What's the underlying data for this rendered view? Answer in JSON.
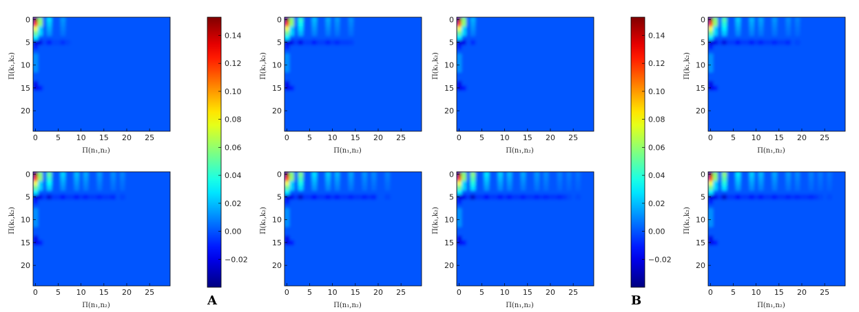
{
  "panel_letters": [
    "A",
    "B"
  ],
  "chart_data": {
    "type": "heatmap",
    "xlabel": "Π(n₁,n₂)",
    "ylabel": "Π(k₁,k₂)",
    "x_ticks": [
      0,
      5,
      10,
      15,
      20,
      25
    ],
    "y_ticks": [
      0,
      5,
      10,
      15,
      20
    ],
    "xlim": [
      0,
      29
    ],
    "ylim": [
      24,
      0
    ],
    "colormap": "jet",
    "colorbar_ticks": [
      -0.02,
      0.0,
      0.02,
      0.04,
      0.06,
      0.08,
      0.1,
      0.12,
      0.14
    ],
    "colorbar_tick_labels": [
      "−0.02",
      "0.00",
      "0.02",
      "0.04",
      "0.06",
      "0.08",
      "0.10",
      "0.12",
      "0.14"
    ],
    "vmin": -0.04,
    "vmax": 0.153,
    "groups": [
      {
        "letter": "A",
        "panels": [
          {
            "position": "top-left",
            "stripe_count": 2,
            "stripe_strength": 0.45
          },
          {
            "position": "top-right",
            "stripe_count": 5,
            "stripe_strength": 0.7
          },
          {
            "position": "bottom-left",
            "stripe_count": 7,
            "stripe_strength": 0.85
          },
          {
            "position": "bottom-right",
            "stripe_count": 8,
            "stripe_strength": 0.95
          }
        ]
      },
      {
        "letter": "B",
        "panels": [
          {
            "position": "top-left",
            "stripe_count": 1,
            "stripe_strength": 0.3
          },
          {
            "position": "top-right",
            "stripe_count": 7,
            "stripe_strength": 0.8
          },
          {
            "position": "bottom-left",
            "stripe_count": 10,
            "stripe_strength": 1.0
          },
          {
            "position": "bottom-right",
            "stripe_count": 10,
            "stripe_strength": 1.0
          }
        ]
      }
    ]
  }
}
